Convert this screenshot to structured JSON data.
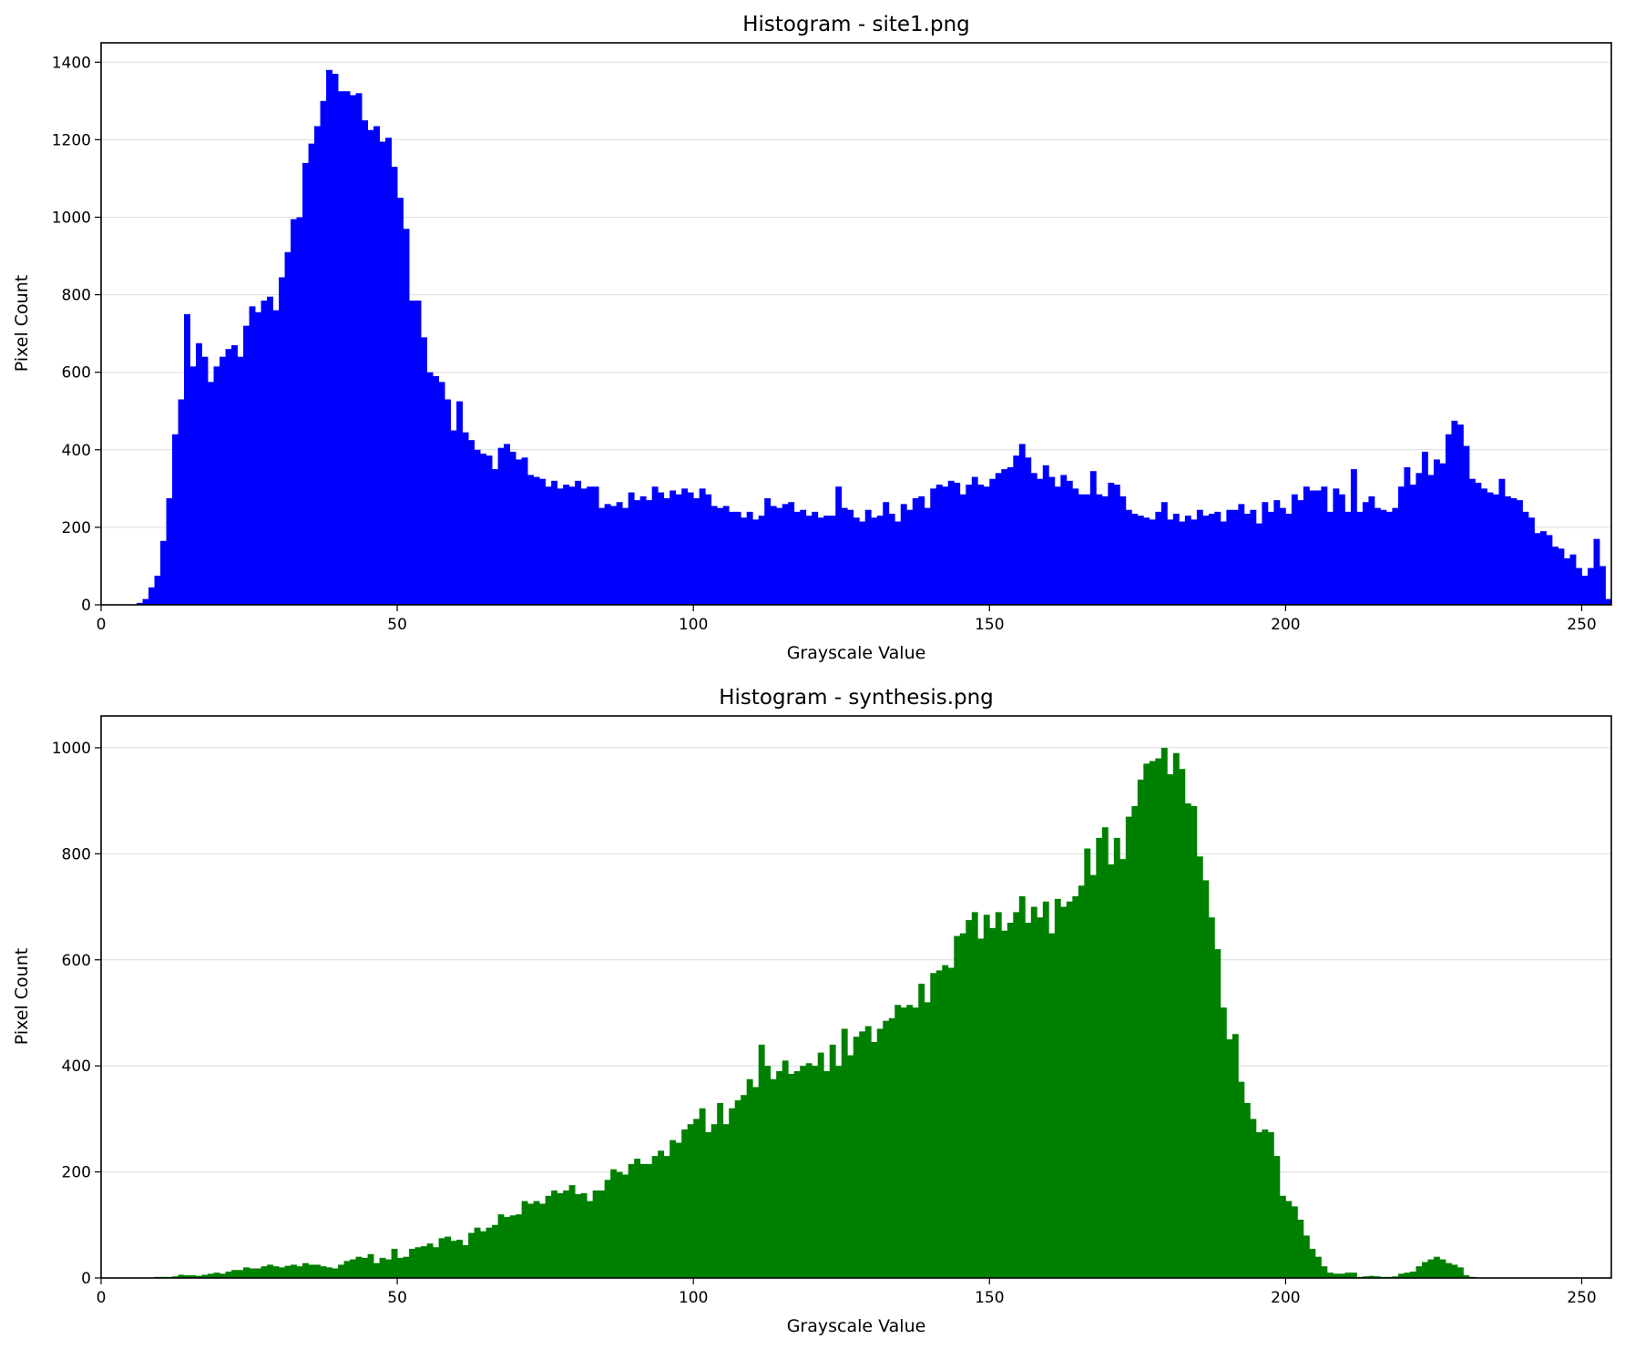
{
  "chart_data": [
    {
      "type": "bar",
      "title": "Histogram - site1.png",
      "xlabel": "Grayscale Value",
      "ylabel": "Pixel Count",
      "xlim": [
        0,
        255
      ],
      "ylim": [
        0,
        1450
      ],
      "grid": "y",
      "color": "#0000ff",
      "xticks": [
        0,
        50,
        100,
        150,
        200,
        250
      ],
      "yticks": [
        0,
        200,
        400,
        600,
        800,
        1000,
        1200,
        1400
      ],
      "bin_start": 0,
      "values": [
        0,
        0,
        0,
        0,
        0,
        0,
        5,
        15,
        45,
        75,
        165,
        275,
        440,
        530,
        750,
        615,
        675,
        640,
        575,
        615,
        640,
        660,
        670,
        640,
        720,
        770,
        755,
        785,
        795,
        760,
        845,
        910,
        995,
        1000,
        1140,
        1190,
        1235,
        1300,
        1380,
        1370,
        1325,
        1325,
        1315,
        1320,
        1250,
        1225,
        1235,
        1195,
        1205,
        1130,
        1050,
        970,
        785,
        785,
        690,
        600,
        590,
        575,
        530,
        450,
        525,
        445,
        425,
        400,
        390,
        385,
        350,
        405,
        415,
        395,
        375,
        380,
        335,
        330,
        325,
        305,
        320,
        300,
        310,
        305,
        320,
        300,
        305,
        305,
        250,
        260,
        255,
        265,
        250,
        290,
        270,
        280,
        270,
        305,
        290,
        275,
        295,
        285,
        300,
        290,
        275,
        300,
        285,
        255,
        250,
        255,
        240,
        240,
        225,
        240,
        220,
        230,
        275,
        255,
        250,
        260,
        265,
        240,
        245,
        230,
        240,
        225,
        230,
        230,
        305,
        250,
        245,
        225,
        215,
        245,
        225,
        230,
        265,
        235,
        215,
        260,
        245,
        275,
        280,
        250,
        300,
        310,
        305,
        320,
        315,
        285,
        310,
        330,
        310,
        305,
        325,
        340,
        350,
        355,
        385,
        415,
        380,
        340,
        325,
        360,
        330,
        305,
        335,
        320,
        300,
        285,
        285,
        345,
        285,
        280,
        315,
        310,
        280,
        245,
        235,
        230,
        225,
        220,
        240,
        265,
        220,
        235,
        215,
        230,
        220,
        245,
        230,
        235,
        240,
        215,
        245,
        245,
        260,
        235,
        245,
        210,
        265,
        240,
        270,
        250,
        235,
        285,
        270,
        305,
        295,
        295,
        305,
        240,
        300,
        285,
        240,
        350,
        240,
        265,
        280,
        250,
        245,
        240,
        250,
        305,
        355,
        310,
        340,
        395,
        335,
        375,
        365,
        440,
        475,
        465,
        410,
        325,
        315,
        300,
        290,
        285,
        325,
        280,
        275,
        270,
        240,
        225,
        185,
        190,
        180,
        150,
        145,
        120,
        130,
        95,
        75,
        95,
        170,
        100,
        15
      ]
    },
    {
      "type": "bar",
      "title": "Histogram - synthesis.png",
      "xlabel": "Grayscale Value",
      "ylabel": "Pixel Count",
      "xlim": [
        0,
        255
      ],
      "ylim": [
        0,
        1060
      ],
      "grid": "y",
      "color": "#008000",
      "xticks": [
        0,
        50,
        100,
        150,
        200,
        250
      ],
      "yticks": [
        0,
        200,
        400,
        600,
        800,
        1000
      ],
      "bin_start": 0,
      "values": [
        0,
        0,
        0,
        0,
        0,
        0,
        0,
        0,
        0,
        2,
        2,
        2,
        3,
        6,
        5,
        5,
        4,
        6,
        8,
        10,
        8,
        12,
        15,
        15,
        20,
        18,
        18,
        22,
        25,
        22,
        20,
        23,
        25,
        22,
        28,
        25,
        25,
        22,
        20,
        18,
        25,
        32,
        35,
        40,
        38,
        45,
        28,
        38,
        35,
        55,
        38,
        40,
        55,
        58,
        60,
        65,
        58,
        75,
        78,
        70,
        72,
        62,
        85,
        95,
        88,
        95,
        100,
        120,
        115,
        118,
        120,
        145,
        140,
        145,
        140,
        155,
        165,
        160,
        165,
        175,
        158,
        160,
        145,
        165,
        165,
        185,
        205,
        200,
        195,
        215,
        225,
        215,
        215,
        230,
        240,
        230,
        260,
        255,
        280,
        290,
        300,
        320,
        275,
        290,
        330,
        290,
        320,
        335,
        345,
        375,
        360,
        440,
        400,
        375,
        390,
        410,
        385,
        390,
        400,
        405,
        400,
        425,
        390,
        440,
        400,
        470,
        420,
        455,
        465,
        475,
        445,
        470,
        485,
        490,
        515,
        510,
        515,
        510,
        555,
        520,
        575,
        580,
        590,
        585,
        645,
        650,
        675,
        690,
        640,
        685,
        660,
        690,
        655,
        670,
        690,
        720,
        670,
        700,
        680,
        710,
        650,
        715,
        700,
        710,
        720,
        740,
        810,
        760,
        830,
        850,
        780,
        830,
        790,
        870,
        890,
        940,
        970,
        975,
        980,
        1000,
        950,
        990,
        960,
        895,
        890,
        795,
        750,
        680,
        620,
        510,
        450,
        460,
        370,
        330,
        300,
        275,
        280,
        275,
        230,
        155,
        145,
        135,
        110,
        80,
        55,
        40,
        22,
        10,
        8,
        8,
        10,
        10,
        2,
        3,
        4,
        3,
        2,
        2,
        3,
        8,
        10,
        12,
        22,
        30,
        35,
        40,
        35,
        28,
        25,
        20,
        5,
        2,
        0,
        0,
        0,
        0,
        0,
        0,
        0,
        0,
        0,
        0,
        0,
        0,
        0,
        0,
        0,
        0,
        0,
        0,
        0
      ]
    }
  ]
}
